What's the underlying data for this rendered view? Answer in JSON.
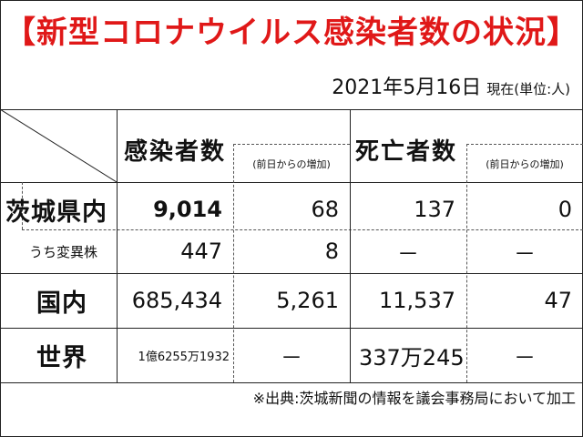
{
  "title": "【新型コロナウイルス感染者数の状況】",
  "date": "2021年5月16日",
  "unit_note": "現在(単位:人)",
  "headers": {
    "infected": "感染者数",
    "infected_change": "(前日からの増加)",
    "deaths": "死亡者数",
    "deaths_change": "(前日からの増加)"
  },
  "rows": [
    {
      "label": "茨城県内",
      "infected": "9,014",
      "infected_change": "68",
      "deaths": "137",
      "deaths_change": "0"
    },
    {
      "label": "うち変異株",
      "infected": "447",
      "infected_change": "8",
      "deaths": "－",
      "deaths_change": "－"
    },
    {
      "label": "国内",
      "infected": "685,434",
      "infected_change": "5,261",
      "deaths": "11,537",
      "deaths_change": "47"
    },
    {
      "label": "世界",
      "infected": "1億6255万1932",
      "infected_change": "－",
      "deaths": "337万245",
      "deaths_change": "－"
    }
  ],
  "footer": "※出典:茨城新聞の情報を議会事務局において加工"
}
